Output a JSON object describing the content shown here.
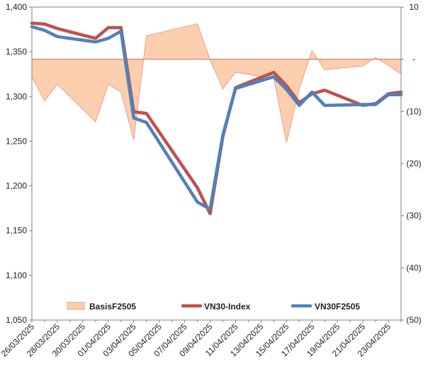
{
  "chart_data": {
    "type": "line",
    "title": "",
    "xlabel": "",
    "ylabel": "",
    "y2label": "",
    "ylim": [
      1050,
      1400
    ],
    "y2lim": [
      -50,
      10
    ],
    "y_ticks": [
      "1,050",
      "1,100",
      "1,150",
      "1,200",
      "1,250",
      "1,300",
      "1,350",
      "1,400"
    ],
    "y2_ticks": [
      "(50)",
      "(40)",
      "(30)",
      "(20)",
      "(10)",
      "-",
      "10"
    ],
    "x": [
      "26/03/2025",
      "27/03/2025",
      "28/03/2025",
      "31/03/2025",
      "01/04/2025",
      "02/04/2025",
      "03/04/2025",
      "04/04/2025",
      "08/04/2025",
      "09/04/2025",
      "10/04/2025",
      "11/04/2025",
      "14/04/2025",
      "15/04/2025",
      "16/04/2025",
      "17/04/2025",
      "18/04/2025",
      "21/04/2025",
      "22/04/2025",
      "23/04/2025",
      "24/04/2025"
    ],
    "x_numeric_days": [
      0,
      1,
      2,
      5,
      6,
      7,
      8,
      9,
      13,
      14,
      15,
      16,
      19,
      20,
      21,
      22,
      23,
      26,
      27,
      28,
      29
    ],
    "x_tick_labels": [
      "26/03/2025",
      "28/03/2025",
      "30/03/2025",
      "01/04/2025",
      "03/04/2025",
      "05/04/2025",
      "07/04/2025",
      "09/04/2025",
      "11/04/2025",
      "13/04/2025",
      "15/04/2025",
      "17/04/2025",
      "19/04/2025",
      "21/04/2025",
      "23/04/2025"
    ],
    "series": [
      {
        "name": "BasisF2505",
        "type": "area",
        "axis": "right",
        "color": "#fbcfae",
        "stroke": "#e8a090",
        "values": [
          -3.4,
          -8.0,
          -4.8,
          -12.0,
          -4.8,
          -6.3,
          -15.5,
          4.5,
          6.8,
          -0.1,
          -5.7,
          -2.5,
          -3.7,
          -16.0,
          -5.7,
          1.6,
          -2.0,
          -1.3,
          0.3,
          -1.2,
          -2.8
        ]
      },
      {
        "name": "VN30-Index",
        "type": "line",
        "axis": "left",
        "color": "#c0504d",
        "values": [
          1382,
          1381,
          1376,
          1365,
          1377,
          1377,
          1283,
          1281,
          1198,
          1169,
          1255,
          1310,
          1327,
          1312,
          1293,
          1303,
          1307,
          1290,
          1292,
          1303,
          1305
        ]
      },
      {
        "name": "VN30F2505",
        "type": "line",
        "axis": "left",
        "color": "#4f81bd",
        "values": [
          1378,
          1374,
          1367,
          1361,
          1365,
          1373,
          1276,
          1271,
          1182,
          1174,
          1257,
          1309,
          1322,
          1308,
          1290,
          1305,
          1290,
          1291,
          1291,
          1302,
          1302
        ]
      }
    ],
    "legend": {
      "placement": "bottom",
      "entries": [
        "BasisF2505",
        "VN30-Index",
        "VN30F2505"
      ]
    },
    "grid": false
  }
}
